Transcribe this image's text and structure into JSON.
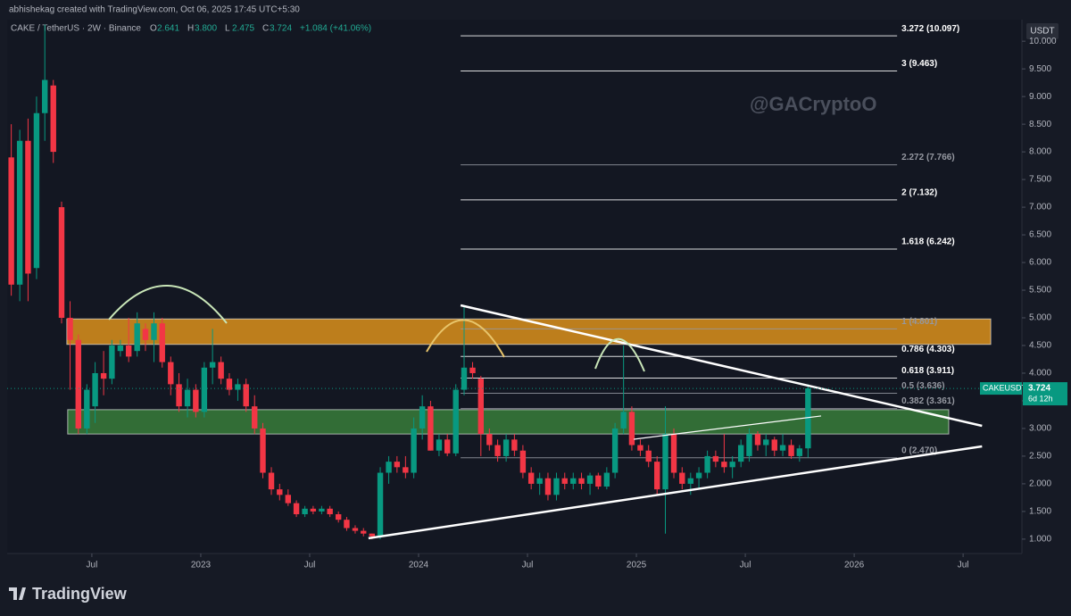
{
  "chart_data": {
    "type": "candlestick",
    "header": "abhishekag created with TradingView.com, Oct 06, 2025 17:45 UTC+5:30",
    "symbol": "CAKE / TetherUS · 2W · Binance",
    "ohlc": [
      [
        "O",
        "2.641"
      ],
      [
        "H",
        "3.800"
      ],
      [
        "L",
        "2.475"
      ],
      [
        "C",
        "3.724"
      ]
    ],
    "change": "+1.084 (+41.06%)",
    "watermark": "@GACryptoO",
    "currency": "USDT",
    "ticker": "CAKEUSDT",
    "last_price_label": "3.724",
    "countdown": "6d 12h",
    "brand": "TradingView",
    "up_color": "#089981",
    "down_color": "#f23645",
    "xlim": [
      2022.111,
      2026.77
    ],
    "ylim": [
      0.74,
      10.39
    ],
    "xticks": [
      {
        "value": 2022.5,
        "label": "Jul"
      },
      2023,
      {
        "value": 2023.5,
        "label": "Jul"
      },
      2024,
      {
        "value": 2024.5,
        "label": "Jul"
      },
      2025,
      {
        "value": 2025.5,
        "label": "Jul"
      },
      2026,
      {
        "value": 2026.5,
        "label": "Jul"
      }
    ],
    "yticks": [
      {
        "value": 1,
        "label": "1.000"
      },
      {
        "value": 1.5,
        "label": "1.500"
      },
      {
        "value": 2,
        "label": "2.000"
      },
      {
        "value": 2.5,
        "label": "2.500"
      },
      {
        "value": 3,
        "label": "3.000"
      },
      {
        "value": 3.5,
        "label": "3.500"
      },
      {
        "value": 4,
        "label": "4.000"
      },
      {
        "value": 4.5,
        "label": "4.500"
      },
      {
        "value": 5,
        "label": "5.000"
      },
      {
        "value": 5.5,
        "label": "5.500"
      },
      {
        "value": 6,
        "label": "6.000"
      },
      {
        "value": 6.5,
        "label": "6.500"
      },
      {
        "value": 7,
        "label": "7.000"
      },
      {
        "value": 7.5,
        "label": "7.500"
      },
      {
        "value": 8,
        "label": "8.000"
      },
      {
        "value": 8.5,
        "label": "8.500"
      },
      {
        "value": 9,
        "label": "9.000"
      },
      {
        "value": 9.5,
        "label": "9.500"
      },
      {
        "value": 10,
        "label": "10.000"
      }
    ],
    "x": [
      2022.13,
      2022.169,
      2022.207,
      2022.246,
      2022.284,
      2022.323,
      2022.361,
      2022.4,
      2022.438,
      2022.477,
      2022.515,
      2022.554,
      2022.592,
      2022.631,
      2022.669,
      2022.708,
      2022.746,
      2022.785,
      2022.823,
      2022.862,
      2022.9,
      2022.939,
      2022.977,
      2023.016,
      2023.054,
      2023.093,
      2023.131,
      2023.17,
      2023.208,
      2023.247,
      2023.285,
      2023.324,
      2023.362,
      2023.401,
      2023.439,
      2023.478,
      2023.516,
      2023.555,
      2023.593,
      2023.632,
      2023.67,
      2023.709,
      2023.747,
      2023.786,
      2023.824,
      2023.863,
      2023.901,
      2023.94,
      2023.978,
      2024.017,
      2024.055,
      2024.094,
      2024.132,
      2024.171,
      2024.209,
      2024.248,
      2024.286,
      2024.325,
      2024.363,
      2024.402,
      2024.44,
      2024.479,
      2024.517,
      2024.556,
      2024.594,
      2024.633,
      2024.671,
      2024.71,
      2024.748,
      2024.787,
      2024.825,
      2024.864,
      2024.902,
      2024.941,
      2024.979,
      2025.018,
      2025.056,
      2025.095,
      2025.133,
      2025.172,
      2025.21,
      2025.249,
      2025.287,
      2025.326,
      2025.364,
      2025.403,
      2025.441,
      2025.48,
      2025.518,
      2025.557,
      2025.595,
      2025.634,
      2025.672,
      2025.711,
      2025.749,
      2025.788
    ],
    "candles": [
      [
        7.9,
        8.5,
        5.4,
        5.6
      ],
      [
        5.6,
        8.4,
        5.3,
        8.2
      ],
      [
        8.2,
        8.6,
        5.3,
        5.8
      ],
      [
        5.9,
        9.0,
        5.7,
        8.7
      ],
      [
        8.7,
        10.3,
        8.2,
        9.3
      ],
      [
        9.2,
        9.3,
        7.8,
        8.0
      ],
      [
        7.0,
        7.1,
        4.9,
        5.0
      ],
      [
        5.0,
        5.3,
        3.7,
        4.6
      ],
      [
        4.6,
        4.7,
        2.9,
        3.0
      ],
      [
        3.0,
        3.8,
        2.9,
        3.7
      ],
      [
        3.4,
        4.2,
        3.1,
        4.0
      ],
      [
        4.0,
        4.4,
        3.6,
        3.9
      ],
      [
        3.9,
        4.6,
        3.8,
        4.5
      ],
      [
        4.4,
        4.6,
        4.3,
        4.5
      ],
      [
        4.5,
        5.0,
        4.2,
        4.3
      ],
      [
        4.4,
        5.1,
        4.3,
        4.9
      ],
      [
        4.8,
        4.9,
        4.4,
        4.6
      ],
      [
        4.6,
        5.1,
        4.2,
        4.9
      ],
      [
        4.9,
        5.0,
        4.1,
        4.2
      ],
      [
        4.2,
        4.3,
        3.6,
        3.8
      ],
      [
        3.8,
        4.0,
        3.3,
        3.4
      ],
      [
        3.4,
        3.9,
        3.2,
        3.7
      ],
      [
        3.7,
        3.8,
        3.2,
        3.3
      ],
      [
        3.3,
        4.2,
        3.2,
        4.1
      ],
      [
        4.1,
        4.8,
        3.8,
        4.2
      ],
      [
        4.2,
        4.3,
        3.8,
        3.9
      ],
      [
        3.9,
        4.0,
        3.6,
        3.7
      ],
      [
        3.7,
        3.9,
        3.5,
        3.8
      ],
      [
        3.8,
        3.9,
        3.3,
        3.4
      ],
      [
        3.4,
        3.6,
        2.9,
        3.0
      ],
      [
        3.0,
        3.1,
        2.1,
        2.2
      ],
      [
        2.2,
        2.3,
        1.8,
        1.9
      ],
      [
        1.9,
        2.0,
        1.7,
        1.8
      ],
      [
        1.8,
        1.9,
        1.6,
        1.65
      ],
      [
        1.65,
        1.7,
        1.4,
        1.45
      ],
      [
        1.45,
        1.6,
        1.4,
        1.55
      ],
      [
        1.55,
        1.6,
        1.45,
        1.5
      ],
      [
        1.5,
        1.6,
        1.45,
        1.55
      ],
      [
        1.55,
        1.6,
        1.4,
        1.45
      ],
      [
        1.45,
        1.5,
        1.3,
        1.35
      ],
      [
        1.35,
        1.4,
        1.15,
        1.2
      ],
      [
        1.2,
        1.25,
        1.1,
        1.15
      ],
      [
        1.15,
        1.2,
        1.05,
        1.1
      ],
      [
        1.1,
        1.1,
        1.0,
        1.05
      ],
      [
        1.05,
        2.3,
        1.0,
        2.2
      ],
      [
        2.2,
        2.5,
        2.0,
        2.4
      ],
      [
        2.4,
        2.5,
        2.2,
        2.3
      ],
      [
        2.3,
        2.5,
        2.1,
        2.2
      ],
      [
        2.2,
        3.2,
        2.1,
        3.0
      ],
      [
        3.0,
        3.6,
        2.8,
        3.4
      ],
      [
        3.4,
        3.5,
        2.6,
        2.6
      ],
      [
        2.6,
        2.9,
        2.5,
        2.8
      ],
      [
        2.8,
        2.9,
        2.5,
        2.55
      ],
      [
        2.55,
        3.8,
        2.5,
        3.7
      ],
      [
        3.7,
        5.2,
        3.6,
        4.1
      ],
      [
        4.1,
        4.2,
        3.9,
        4.0
      ],
      [
        3.9,
        3.95,
        2.5,
        2.9
      ],
      [
        2.9,
        3.0,
        2.6,
        2.7
      ],
      [
        2.7,
        2.8,
        2.4,
        2.5
      ],
      [
        2.5,
        2.9,
        2.4,
        2.8
      ],
      [
        2.8,
        2.9,
        2.5,
        2.6
      ],
      [
        2.6,
        2.7,
        2.1,
        2.2
      ],
      [
        2.2,
        2.3,
        1.9,
        2.0
      ],
      [
        2.0,
        2.2,
        1.8,
        2.1
      ],
      [
        2.1,
        2.2,
        1.7,
        1.8
      ],
      [
        1.8,
        2.2,
        1.7,
        2.1
      ],
      [
        2.1,
        2.2,
        1.9,
        2.0
      ],
      [
        2.0,
        2.2,
        1.9,
        2.1
      ],
      [
        2.1,
        2.2,
        1.9,
        2.0
      ],
      [
        2.0,
        2.2,
        1.8,
        2.15
      ],
      [
        2.15,
        2.2,
        1.9,
        1.95
      ],
      [
        1.95,
        2.3,
        1.9,
        2.2
      ],
      [
        2.2,
        3.1,
        2.1,
        3.0
      ],
      [
        3.0,
        4.5,
        2.9,
        3.3
      ],
      [
        3.3,
        3.4,
        2.6,
        2.7
      ],
      [
        2.7,
        2.8,
        2.5,
        2.6
      ],
      [
        2.6,
        2.7,
        2.3,
        2.4
      ],
      [
        2.4,
        2.5,
        1.8,
        1.9
      ],
      [
        1.9,
        3.4,
        1.1,
        2.9
      ],
      [
        2.9,
        3.0,
        2.1,
        2.2
      ],
      [
        2.2,
        2.3,
        1.9,
        2.0
      ],
      [
        2.0,
        2.2,
        1.8,
        2.1
      ],
      [
        2.1,
        2.3,
        1.9,
        2.2
      ],
      [
        2.2,
        2.6,
        2.1,
        2.5
      ],
      [
        2.5,
        2.6,
        2.3,
        2.4
      ],
      [
        2.4,
        2.9,
        2.2,
        2.3
      ],
      [
        2.3,
        2.5,
        2.1,
        2.4
      ],
      [
        2.4,
        2.8,
        2.3,
        2.7
      ],
      [
        2.5,
        3.0,
        2.4,
        2.9
      ],
      [
        2.9,
        2.95,
        2.6,
        2.7
      ],
      [
        2.7,
        2.9,
        2.5,
        2.8
      ],
      [
        2.8,
        2.85,
        2.5,
        2.6
      ],
      [
        2.6,
        2.9,
        2.5,
        2.7
      ],
      [
        2.7,
        2.8,
        2.45,
        2.5
      ],
      [
        2.5,
        2.7,
        2.4,
        2.64
      ],
      [
        2.641,
        3.8,
        2.475,
        3.724
      ]
    ],
    "fib_x": [
      2024.193,
      2026.197
    ],
    "fib_levels": [
      {
        "label": "3.272 (10.097)",
        "price": 10.097,
        "color": "#ffffff"
      },
      {
        "label": "3 (9.463)",
        "price": 9.463,
        "color": "#ffffff"
      },
      {
        "label": "2.272 (7.766)",
        "price": 7.766,
        "color": "#9598a1"
      },
      {
        "label": "2 (7.132)",
        "price": 7.132,
        "color": "#ffffff"
      },
      {
        "label": "1.618 (6.242)",
        "price": 6.242,
        "color": "#ffffff"
      },
      {
        "label": "1 (4.801)",
        "price": 4.801,
        "color": "#9598a1"
      },
      {
        "label": "0.786 (4.303)",
        "price": 4.303,
        "color": "#ffffff"
      },
      {
        "label": "0.618 (3.911)",
        "price": 3.911,
        "color": "#ffffff"
      },
      {
        "label": "0.5 (3.636)",
        "price": 3.636,
        "color": "#9598a1"
      },
      {
        "label": "0.382 (3.361)",
        "price": 3.361,
        "color": "#9598a1"
      },
      {
        "label": "0 (2.470)",
        "price": 2.47,
        "color": "#9598a1"
      }
    ],
    "zones": [
      {
        "x": [
          2022.385,
          2026.627
        ],
        "price": [
          4.52,
          4.98
        ],
        "color": "#f7a21b"
      },
      {
        "x": [
          2022.389,
          2026.434
        ],
        "price": [
          2.9,
          3.34
        ],
        "color": "#3d8b3d"
      }
    ],
    "trendlines": [
      {
        "x": [
          2024.193,
          2026.587
        ],
        "price": [
          5.226,
          3.048
        ]
      },
      {
        "x": [
          2023.77,
          2026.587
        ],
        "price": [
          1.016,
          2.677
        ]
      },
      {
        "x": [
          2024.988,
          2025.848
        ],
        "price": [
          2.806,
          3.226
        ]
      }
    ]
  }
}
